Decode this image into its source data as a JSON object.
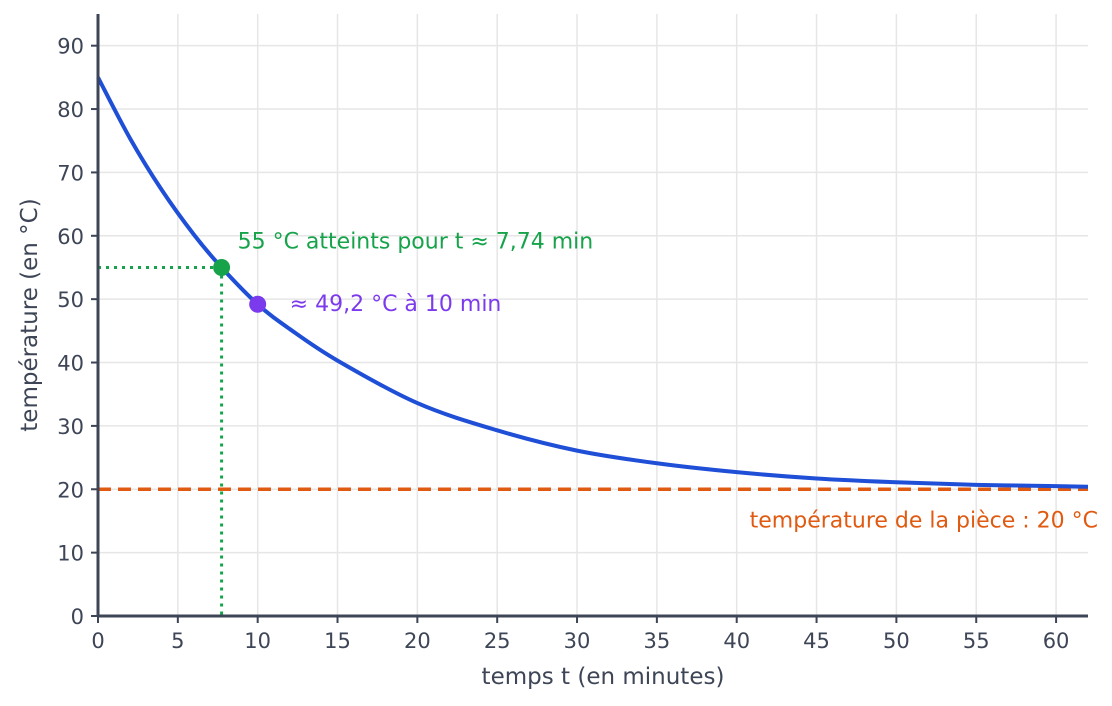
{
  "chart_data": {
    "type": "line",
    "xlabel": "temps t (en minutes)",
    "ylabel": "température (en °C)",
    "xlim": [
      0,
      62
    ],
    "ylim": [
      0,
      95
    ],
    "xticks": [
      0,
      5,
      10,
      15,
      20,
      25,
      30,
      35,
      40,
      45,
      50,
      55,
      60
    ],
    "yticks": [
      0,
      10,
      20,
      30,
      40,
      50,
      60,
      70,
      80,
      90
    ],
    "grid": true,
    "series": [
      {
        "x": [
          0,
          2,
          4,
          6,
          7.74,
          10,
          12,
          15,
          20,
          25,
          30,
          35,
          40,
          45,
          50,
          55,
          60,
          62
        ],
        "y": [
          85,
          75.4,
          67.2,
          60.2,
          55,
          49.2,
          45.3,
          40.3,
          33.6,
          29.3,
          26.1,
          24.1,
          22.7,
          21.7,
          21.1,
          20.7,
          20.5,
          20.4
        ]
      }
    ],
    "reference_line": {
      "y": 20,
      "label": "température de la pièce : 20 °C"
    },
    "points": [
      {
        "x": 7.74,
        "y": 55,
        "label": "55 °C atteints pour t ≈ 7,74 min"
      },
      {
        "x": 10,
        "y": 49.2,
        "label": "≈ 49,2 °C à 10 min"
      }
    ],
    "colors": {
      "curve": "#1f4fd6",
      "reference": "#e05a12",
      "threshold": "#16a34a",
      "marker": "#7c3aed",
      "axis": "#3d4556",
      "grid": "#e6e6e6"
    }
  }
}
